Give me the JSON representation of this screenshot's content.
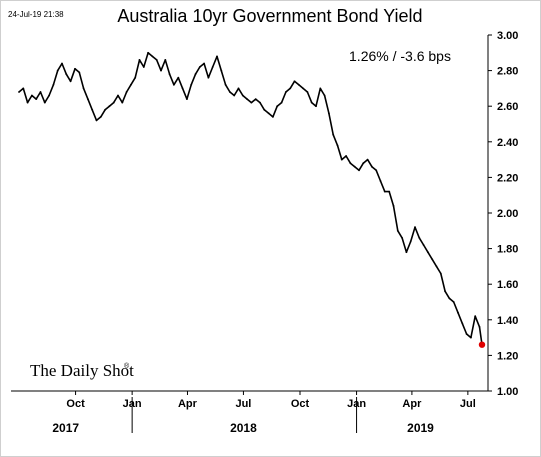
{
  "timestamp": "24-Jul-19 21:38",
  "logo_text": "The Daily Shot",
  "chart_data": {
    "type": "line",
    "title": "Australia 10yr Government Bond Yield",
    "annotation": "1.26%  /  -3.6 bps",
    "xlabel": "",
    "ylabel": "",
    "x_range": [
      "2017-07-01",
      "2019-07-24"
    ],
    "ylim": [
      1.0,
      3.0
    ],
    "y_ticks": [
      "3.00",
      "2.80",
      "2.60",
      "2.40",
      "2.20",
      "2.00",
      "1.80",
      "1.60",
      "1.40",
      "1.20",
      "1.00"
    ],
    "x_ticks": [
      {
        "label": "Oct",
        "date": "2017-10-01"
      },
      {
        "label": "Jan",
        "date": "2018-01-01"
      },
      {
        "label": "Apr",
        "date": "2018-04-01"
      },
      {
        "label": "Jul",
        "date": "2018-07-01"
      },
      {
        "label": "Oct",
        "date": "2018-10-01"
      },
      {
        "label": "Jan",
        "date": "2019-01-01"
      },
      {
        "label": "Apr",
        "date": "2019-04-01"
      },
      {
        "label": "Jul",
        "date": "2019-07-01"
      }
    ],
    "year_labels": [
      {
        "label": "2017",
        "date": "2017-09-15"
      },
      {
        "label": "2018",
        "date": "2018-07-01"
      },
      {
        "label": "2019",
        "date": "2019-04-15"
      }
    ],
    "year_dividers": [
      "2018-01-01",
      "2019-01-01"
    ],
    "grid": false,
    "line_color": "#000000",
    "last_point_color": "#e00000",
    "series": [
      {
        "x": [
          "2017-07-01",
          "2017-07-08",
          "2017-07-15",
          "2017-07-22",
          "2017-07-29",
          "2017-08-05",
          "2017-08-12",
          "2017-08-19",
          "2017-08-26",
          "2017-09-02",
          "2017-09-09",
          "2017-09-16",
          "2017-09-23",
          "2017-09-30",
          "2017-10-07",
          "2017-10-14",
          "2017-10-21",
          "2017-10-28",
          "2017-11-04",
          "2017-11-11",
          "2017-11-18",
          "2017-11-25",
          "2017-12-02",
          "2017-12-09",
          "2017-12-16",
          "2017-12-23",
          "2017-12-30",
          "2018-01-06",
          "2018-01-13",
          "2018-01-20",
          "2018-01-27",
          "2018-02-03",
          "2018-02-10",
          "2018-02-17",
          "2018-02-24",
          "2018-03-03",
          "2018-03-10",
          "2018-03-17",
          "2018-03-24",
          "2018-03-31",
          "2018-04-07",
          "2018-04-14",
          "2018-04-21",
          "2018-04-28",
          "2018-05-05",
          "2018-05-12",
          "2018-05-19",
          "2018-05-26",
          "2018-06-02",
          "2018-06-09",
          "2018-06-16",
          "2018-06-23",
          "2018-06-30",
          "2018-07-07",
          "2018-07-14",
          "2018-07-21",
          "2018-07-28",
          "2018-08-04",
          "2018-08-11",
          "2018-08-18",
          "2018-08-25",
          "2018-09-01",
          "2018-09-08",
          "2018-09-15",
          "2018-09-22",
          "2018-09-29",
          "2018-10-06",
          "2018-10-13",
          "2018-10-20",
          "2018-10-27",
          "2018-11-03",
          "2018-11-10",
          "2018-11-17",
          "2018-11-24",
          "2018-12-01",
          "2018-12-08",
          "2018-12-15",
          "2018-12-22",
          "2018-12-29",
          "2019-01-05",
          "2019-01-12",
          "2019-01-19",
          "2019-01-26",
          "2019-02-02",
          "2019-02-09",
          "2019-02-16",
          "2019-02-23",
          "2019-03-02",
          "2019-03-09",
          "2019-03-16",
          "2019-03-23",
          "2019-03-30",
          "2019-04-06",
          "2019-04-13",
          "2019-04-20",
          "2019-04-27",
          "2019-05-04",
          "2019-05-11",
          "2019-05-18",
          "2019-05-25",
          "2019-06-01",
          "2019-06-08",
          "2019-06-15",
          "2019-06-22",
          "2019-06-29",
          "2019-07-06",
          "2019-07-13",
          "2019-07-20",
          "2019-07-24"
        ],
        "values": [
          2.68,
          2.7,
          2.62,
          2.66,
          2.64,
          2.68,
          2.62,
          2.66,
          2.72,
          2.8,
          2.84,
          2.78,
          2.74,
          2.81,
          2.79,
          2.7,
          2.64,
          2.58,
          2.52,
          2.54,
          2.58,
          2.6,
          2.62,
          2.66,
          2.62,
          2.68,
          2.72,
          2.76,
          2.86,
          2.82,
          2.9,
          2.88,
          2.86,
          2.8,
          2.86,
          2.78,
          2.72,
          2.76,
          2.7,
          2.64,
          2.72,
          2.78,
          2.82,
          2.84,
          2.76,
          2.82,
          2.88,
          2.8,
          2.72,
          2.68,
          2.66,
          2.7,
          2.66,
          2.64,
          2.62,
          2.64,
          2.62,
          2.58,
          2.56,
          2.54,
          2.6,
          2.62,
          2.68,
          2.7,
          2.74,
          2.72,
          2.7,
          2.68,
          2.62,
          2.6,
          2.7,
          2.66,
          2.56,
          2.44,
          2.38,
          2.3,
          2.32,
          2.28,
          2.26,
          2.24,
          2.28,
          2.3,
          2.26,
          2.24,
          2.18,
          2.12,
          2.12,
          2.04,
          1.9,
          1.86,
          1.78,
          1.84,
          1.92,
          1.86,
          1.82,
          1.78,
          1.74,
          1.7,
          1.66,
          1.56,
          1.52,
          1.5,
          1.44,
          1.38,
          1.32,
          1.3,
          1.42,
          1.36,
          1.26
        ]
      }
    ]
  }
}
